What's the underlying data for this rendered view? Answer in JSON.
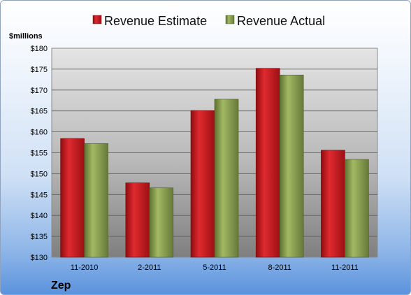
{
  "company": "Zep",
  "unit_label": "$millions",
  "colors": {
    "estimate": "#c8161d",
    "actual": "#8aa04a"
  },
  "chart_data": {
    "type": "bar",
    "categories": [
      "11-2010",
      "2-2011",
      "5-2011",
      "8-2011",
      "11-2011"
    ],
    "series": [
      {
        "name": "Revenue Estimate",
        "values": [
          158.4,
          147.8,
          165.1,
          175.2,
          155.6
        ]
      },
      {
        "name": "Revenue Actual",
        "values": [
          157.2,
          146.6,
          167.8,
          173.6,
          153.4
        ]
      }
    ],
    "ylim": [
      130,
      180
    ],
    "yticks": [
      "$130",
      "$135",
      "$140",
      "$145",
      "$150",
      "$155",
      "$160",
      "$165",
      "$170",
      "$175",
      "$180"
    ],
    "grid": true,
    "legend": "top-center"
  }
}
